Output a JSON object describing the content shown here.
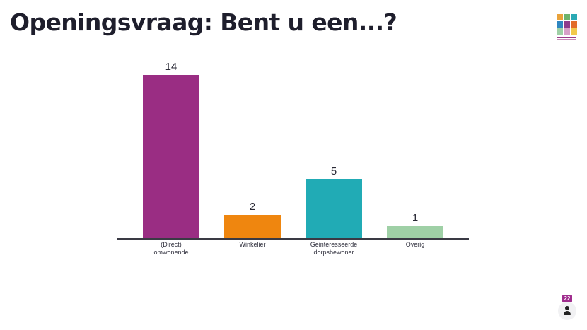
{
  "header": {
    "title": "Openingsvraag: Bent u een...?"
  },
  "logo": {
    "icon": "community-logo-icon",
    "tile_colors": [
      "#e9a23b",
      "#6db36b",
      "#2ba9b4",
      "#2e86c1",
      "#8e3b8c",
      "#e36c2a",
      "#9fd0a6",
      "#d7a0c8",
      "#f2c94c"
    ]
  },
  "chart_data": {
    "type": "bar",
    "title": "Openingsvraag: Bent u een...?",
    "categories": [
      "(Direct)\nomwonende",
      "Winkelier",
      "Geinteresseerde\ndorpsbewoner",
      "Overig"
    ],
    "values": [
      14,
      2,
      5,
      1
    ],
    "colors": [
      "#9a2d83",
      "#ef860f",
      "#21abb5",
      "#9fd0a6"
    ],
    "xlabel": "",
    "ylabel": "",
    "ylim": [
      0,
      14
    ],
    "grid": false,
    "legend": "none",
    "data_labels": true
  },
  "participants": {
    "count": "22",
    "icon": "person-icon",
    "badge_color": "#a02d8e"
  }
}
